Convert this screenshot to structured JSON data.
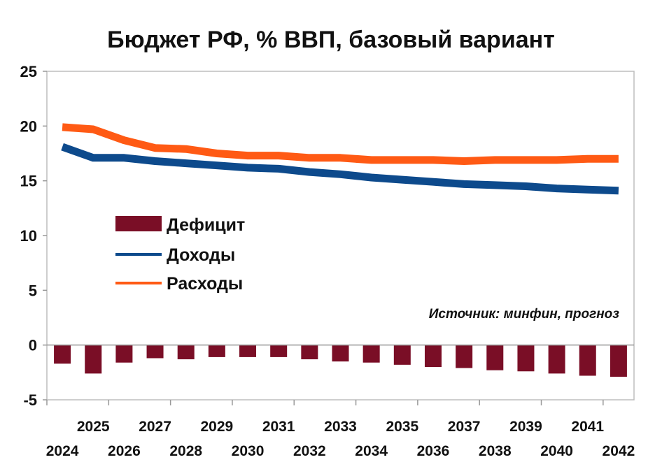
{
  "chart_data": {
    "type": "bar+line",
    "title": "Бюджет РФ, % ВВП, базовый вариант",
    "source_note": "Источник: минфин, прогноз",
    "categories": [
      "2024",
      "2025",
      "2026",
      "2027",
      "2028",
      "2029",
      "2030",
      "2031",
      "2032",
      "2033",
      "2034",
      "2035",
      "2036",
      "2037",
      "2038",
      "2039",
      "2040",
      "2041",
      "2042"
    ],
    "ylim": [
      -5,
      25
    ],
    "yticks": [
      "25",
      "20",
      "15",
      "10",
      "5",
      "0",
      "-5"
    ],
    "grid": false,
    "legend_placement": "left-middle",
    "series": [
      {
        "name": "Дефицит",
        "type": "bar",
        "color": "#7a0e26",
        "values": [
          -1.7,
          -2.6,
          -1.6,
          -1.2,
          -1.3,
          -1.1,
          -1.1,
          -1.1,
          -1.3,
          -1.5,
          -1.6,
          -1.8,
          -2.0,
          -2.1,
          -2.3,
          -2.4,
          -2.6,
          -2.8,
          -2.9
        ]
      },
      {
        "name": "Доходы",
        "type": "line",
        "color": "#0d4a8c",
        "values": [
          18.1,
          17.1,
          17.1,
          16.8,
          16.6,
          16.4,
          16.2,
          16.1,
          15.8,
          15.6,
          15.3,
          15.1,
          14.9,
          14.7,
          14.6,
          14.5,
          14.3,
          14.2,
          14.1
        ]
      },
      {
        "name": "Расходы",
        "type": "line",
        "color": "#ff5a14",
        "values": [
          19.9,
          19.7,
          18.7,
          18.0,
          17.9,
          17.5,
          17.3,
          17.3,
          17.1,
          17.1,
          16.9,
          16.9,
          16.9,
          16.8,
          16.9,
          16.9,
          16.9,
          17.0,
          17.0
        ]
      }
    ]
  }
}
